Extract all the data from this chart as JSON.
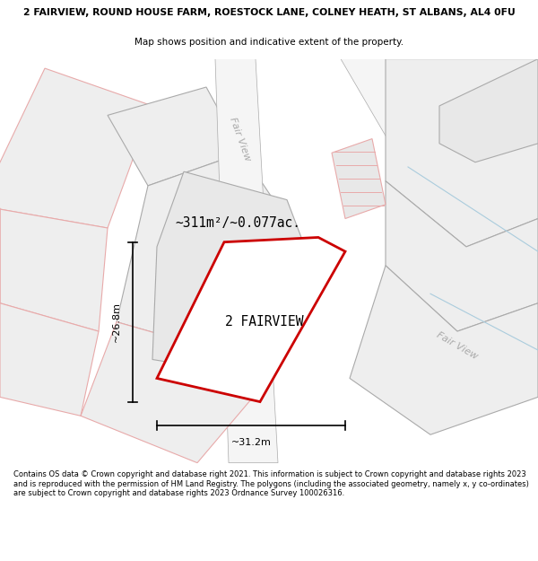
{
  "title_line1": "2 FAIRVIEW, ROUND HOUSE FARM, ROESTOCK LANE, COLNEY HEATH, ST ALBANS, AL4 0FU",
  "title_line2": "Map shows position and indicative extent of the property.",
  "footer_text": "Contains OS data © Crown copyright and database right 2021. This information is subject to Crown copyright and database rights 2023 and is reproduced with the permission of HM Land Registry. The polygons (including the associated geometry, namely x, y co-ordinates) are subject to Crown copyright and database rights 2023 Ordnance Survey 100026316.",
  "area_text": "~311m²/~0.077ac.",
  "plot_label": "2 FAIRVIEW",
  "dim_width": "~31.2m",
  "dim_height": "~26.8m",
  "bg_color": "#ffffff",
  "road_color": "#aaaaaa",
  "parcel_pink_edge": "#e8aaaa",
  "parcel_gray_edge": "#aaaaaa",
  "parcel_fill": "#eeeeee",
  "subject_edge": "#cc0000",
  "subject_fill": "#ffffff",
  "blue_line_color": "#aaccdd"
}
